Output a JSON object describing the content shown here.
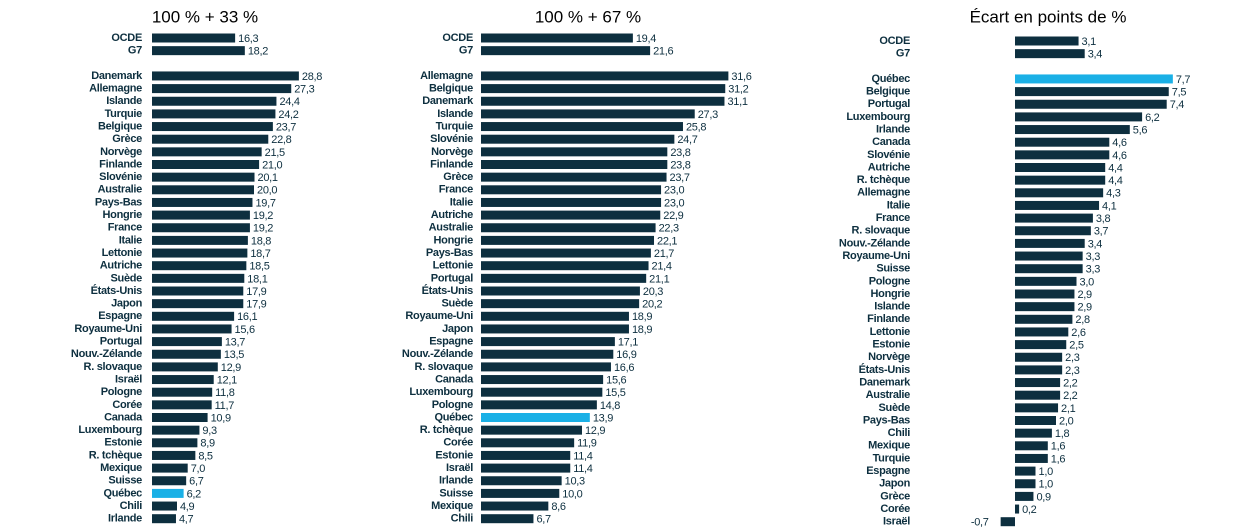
{
  "chart_data": [
    {
      "type": "bar",
      "orientation": "horizontal",
      "title": "100 % + 33 %",
      "categories": [
        "OCDE",
        "G7",
        null,
        "Danemark",
        "Allemagne",
        "Islande",
        "Turquie",
        "Belgique",
        "Grèce",
        "Norvège",
        "Finlande",
        "Slovénie",
        "Australie",
        "Pays-Bas",
        "Hongrie",
        "France",
        "Italie",
        "Lettonie",
        "Autriche",
        "Suède",
        "États-Unis",
        "Japon",
        "Espagne",
        "Royaume-Uni",
        "Portugal",
        "Nouv.-Zélande",
        "R. slovaque",
        "Israël",
        "Pologne",
        "Corée",
        "Canada",
        "Luxembourg",
        "Estonie",
        "R. tchèque",
        "Mexique",
        "Suisse",
        "Québec",
        "Chili",
        "Irlande"
      ],
      "values": [
        16.3,
        18.2,
        null,
        28.8,
        27.3,
        24.4,
        24.2,
        23.7,
        22.8,
        21.5,
        21.0,
        20.1,
        20.0,
        19.7,
        19.2,
        19.2,
        18.8,
        18.7,
        18.5,
        18.1,
        17.9,
        17.9,
        16.1,
        15.6,
        13.7,
        13.5,
        12.9,
        12.1,
        11.8,
        11.7,
        10.9,
        9.3,
        8.9,
        8.5,
        7.0,
        6.7,
        6.2,
        4.9,
        4.7
      ],
      "value_labels": [
        "16,3",
        "18,2",
        null,
        "28,8",
        "27,3",
        "24,4",
        "24,2",
        "23,7",
        "22,8",
        "21,5",
        "21,0",
        "20,1",
        "20,0",
        "19,7",
        "19,2",
        "19,2",
        "18,8",
        "18,7",
        "18,5",
        "18,1",
        "17,9",
        "17,9",
        "16,1",
        "15,6",
        "13,7",
        "13,5",
        "12,9",
        "12,1",
        "11,8",
        "11,7",
        "10,9",
        "9,3",
        "8,9",
        "8,5",
        "7,0",
        "6,7",
        "6,2",
        "4,9",
        "4,7"
      ],
      "colors": [
        "#0d2f3f",
        "#0d2f3f",
        null,
        "#0d2f3f",
        "#0d2f3f",
        "#0d2f3f",
        "#0d2f3f",
        "#0d2f3f",
        "#0d2f3f",
        "#0d2f3f",
        "#0d2f3f",
        "#0d2f3f",
        "#0d2f3f",
        "#0d2f3f",
        "#0d2f3f",
        "#0d2f3f",
        "#0d2f3f",
        "#0d2f3f",
        "#0d2f3f",
        "#0d2f3f",
        "#0d2f3f",
        "#0d2f3f",
        "#0d2f3f",
        "#0d2f3f",
        "#0d2f3f",
        "#0d2f3f",
        "#0d2f3f",
        "#0d2f3f",
        "#0d2f3f",
        "#0d2f3f",
        "#0d2f3f",
        "#0d2f3f",
        "#0d2f3f",
        "#0d2f3f",
        "#0d2f3f",
        "#0d2f3f",
        "#1ab0e6",
        "#0d2f3f",
        "#0d2f3f"
      ],
      "xlim": [
        0,
        30
      ]
    },
    {
      "type": "bar",
      "orientation": "horizontal",
      "title": "100 % + 67 %",
      "categories": [
        "OCDE",
        "G7",
        null,
        "Allemagne",
        "Belgique",
        "Danemark",
        "Islande",
        "Turquie",
        "Slovénie",
        "Norvège",
        "Finlande",
        "Grèce",
        "France",
        "Italie",
        "Autriche",
        "Australie",
        "Hongrie",
        "Pays-Bas",
        "Lettonie",
        "Portugal",
        "États-Unis",
        "Suède",
        "Royaume-Uni",
        "Japon",
        "Espagne",
        "Nouv.-Zélande",
        "R. slovaque",
        "Canada",
        "Luxembourg",
        "Pologne",
        "Québec",
        "R. tchèque",
        "Corée",
        "Estonie",
        "Israël",
        "Irlande",
        "Suisse",
        "Mexique",
        "Chili"
      ],
      "values": [
        19.4,
        21.6,
        null,
        31.6,
        31.2,
        31.1,
        27.3,
        25.8,
        24.7,
        23.8,
        23.8,
        23.7,
        23.0,
        23.0,
        22.9,
        22.3,
        22.1,
        21.7,
        21.4,
        21.1,
        20.3,
        20.2,
        18.9,
        18.9,
        17.1,
        16.9,
        16.6,
        15.6,
        15.5,
        14.8,
        13.9,
        12.9,
        11.9,
        11.4,
        11.4,
        10.3,
        10.0,
        8.6,
        6.7
      ],
      "value_labels": [
        "19,4",
        "21,6",
        null,
        "31,6",
        "31,2",
        "31,1",
        "27,3",
        "25,8",
        "24,7",
        "23,8",
        "23,8",
        "23,7",
        "23,0",
        "23,0",
        "22,9",
        "22,3",
        "22,1",
        "21,7",
        "21,4",
        "21,1",
        "20,3",
        "20,2",
        "18,9",
        "18,9",
        "17,1",
        "16,9",
        "16,6",
        "15,6",
        "15,5",
        "14,8",
        "13,9",
        "12,9",
        "11,9",
        "11,4",
        "11,4",
        "10,3",
        "10,0",
        "8,6",
        "6,7"
      ],
      "colors": [
        "#0d2f3f",
        "#0d2f3f",
        null,
        "#0d2f3f",
        "#0d2f3f",
        "#0d2f3f",
        "#0d2f3f",
        "#0d2f3f",
        "#0d2f3f",
        "#0d2f3f",
        "#0d2f3f",
        "#0d2f3f",
        "#0d2f3f",
        "#0d2f3f",
        "#0d2f3f",
        "#0d2f3f",
        "#0d2f3f",
        "#0d2f3f",
        "#0d2f3f",
        "#0d2f3f",
        "#0d2f3f",
        "#0d2f3f",
        "#0d2f3f",
        "#0d2f3f",
        "#0d2f3f",
        "#0d2f3f",
        "#0d2f3f",
        "#0d2f3f",
        "#0d2f3f",
        "#0d2f3f",
        "#1ab0e6",
        "#0d2f3f",
        "#0d2f3f",
        "#0d2f3f",
        "#0d2f3f",
        "#0d2f3f",
        "#0d2f3f",
        "#0d2f3f",
        "#0d2f3f"
      ],
      "xlim": [
        0,
        35
      ]
    },
    {
      "type": "bar",
      "orientation": "horizontal",
      "title": "Écart en points de %",
      "categories": [
        "OCDE",
        "G7",
        null,
        "Québec",
        "Belgique",
        "Portugal",
        "Luxembourg",
        "Irlande",
        "Canada",
        "Slovénie",
        "Autriche",
        "R. tchèque",
        "Allemagne",
        "Italie",
        "France",
        "R. slovaque",
        "Nouv.-Zélande",
        "Royaume-Uni",
        "Suisse",
        "Pologne",
        "Hongrie",
        "Islande",
        "Finlande",
        "Lettonie",
        "Estonie",
        "Norvège",
        "États-Unis",
        "Danemark",
        "Australie",
        "Suède",
        "Pays-Bas",
        "Chili",
        "Mexique",
        "Turquie",
        "Espagne",
        "Japon",
        "Grèce",
        "Corée",
        "Israël"
      ],
      "values": [
        3.1,
        3.4,
        null,
        7.7,
        7.5,
        7.4,
        6.2,
        5.6,
        4.6,
        4.6,
        4.4,
        4.4,
        4.3,
        4.1,
        3.8,
        3.7,
        3.4,
        3.3,
        3.3,
        3.0,
        2.9,
        2.9,
        2.8,
        2.6,
        2.5,
        2.3,
        2.3,
        2.2,
        2.2,
        2.1,
        2.0,
        1.8,
        1.6,
        1.6,
        1.0,
        1.0,
        0.9,
        0.2,
        -0.7
      ],
      "value_labels": [
        "3,1",
        "3,4",
        null,
        "7,7",
        "7,5",
        "7,4",
        "6,2",
        "5,6",
        "4,6",
        "4,6",
        "4,4",
        "4,4",
        "4,3",
        "4,1",
        "3,8",
        "3,7",
        "3,4",
        "3,3",
        "3,3",
        "3,0",
        "2,9",
        "2,9",
        "2,8",
        "2,6",
        "2,5",
        "2,3",
        "2,3",
        "2,2",
        "2,2",
        "2,1",
        "2,0",
        "1,8",
        "1,6",
        "1,6",
        "1,0",
        "1,0",
        "0,9",
        "0,2",
        "-0,7"
      ],
      "colors": [
        "#0d2f3f",
        "#0d2f3f",
        null,
        "#1ab0e6",
        "#0d2f3f",
        "#0d2f3f",
        "#0d2f3f",
        "#0d2f3f",
        "#0d2f3f",
        "#0d2f3f",
        "#0d2f3f",
        "#0d2f3f",
        "#0d2f3f",
        "#0d2f3f",
        "#0d2f3f",
        "#0d2f3f",
        "#0d2f3f",
        "#0d2f3f",
        "#0d2f3f",
        "#0d2f3f",
        "#0d2f3f",
        "#0d2f3f",
        "#0d2f3f",
        "#0d2f3f",
        "#0d2f3f",
        "#0d2f3f",
        "#0d2f3f",
        "#0d2f3f",
        "#0d2f3f",
        "#0d2f3f",
        "#0d2f3f",
        "#0d2f3f",
        "#0d2f3f",
        "#0d2f3f",
        "#0d2f3f",
        "#0d2f3f",
        "#0d2f3f",
        "#0d2f3f",
        "#0d2f3f"
      ],
      "xlim": [
        -1,
        8
      ]
    }
  ]
}
